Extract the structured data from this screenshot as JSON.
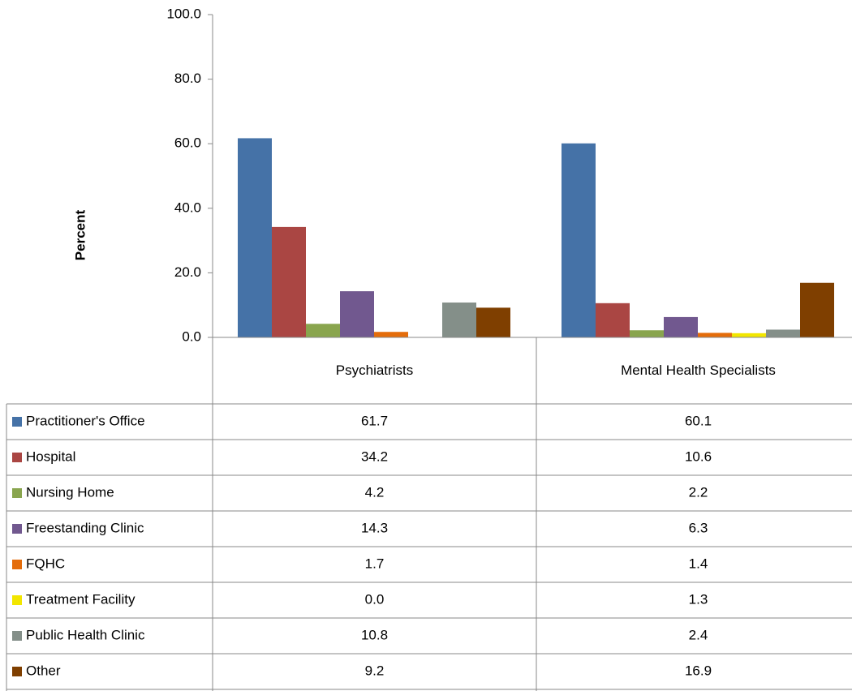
{
  "chart_data": {
    "type": "bar",
    "y_label": "Percent",
    "categories": [
      "Psychiatrists",
      "Mental Health Specialists"
    ],
    "series": [
      {
        "name": "Practitioner's Office",
        "color": "#4572a7",
        "values": [
          61.7,
          60.1
        ],
        "value_labels": [
          "61.7",
          "60.1"
        ]
      },
      {
        "name": "Hospital",
        "color": "#aa4643",
        "values": [
          34.2,
          10.6
        ],
        "value_labels": [
          "34.2",
          "10.6"
        ]
      },
      {
        "name": "Nursing Home",
        "color": "#89a54e",
        "values": [
          4.2,
          2.2
        ],
        "value_labels": [
          "4.2",
          "2.2"
        ]
      },
      {
        "name": "Freestanding Clinic",
        "color": "#71588f",
        "values": [
          14.3,
          6.3
        ],
        "value_labels": [
          "14.3",
          "6.3"
        ]
      },
      {
        "name": "FQHC",
        "color": "#e46c0a",
        "values": [
          1.7,
          1.4
        ],
        "value_labels": [
          "1.7",
          "1.4"
        ]
      },
      {
        "name": "Treatment Facility",
        "color": "#f2e600",
        "values": [
          0.0,
          1.3
        ],
        "value_labels": [
          "0.0",
          "1.3"
        ]
      },
      {
        "name": "Public Health Clinic",
        "color": "#848f89",
        "values": [
          10.8,
          2.4
        ],
        "value_labels": [
          "10.8",
          "2.4"
        ]
      },
      {
        "name": "Other",
        "color": "#7f3f00",
        "values": [
          9.2,
          16.9
        ],
        "value_labels": [
          "9.2",
          "16.9"
        ]
      }
    ],
    "ylim": [
      0,
      100
    ],
    "yticks": [
      {
        "value": 0,
        "label": "0.0"
      },
      {
        "value": 20,
        "label": "20.0"
      },
      {
        "value": 40,
        "label": "40.0"
      },
      {
        "value": 60,
        "label": "60.0"
      },
      {
        "value": 80,
        "label": "80.0"
      },
      {
        "value": 100,
        "label": "100.0"
      }
    ],
    "grid": false
  }
}
